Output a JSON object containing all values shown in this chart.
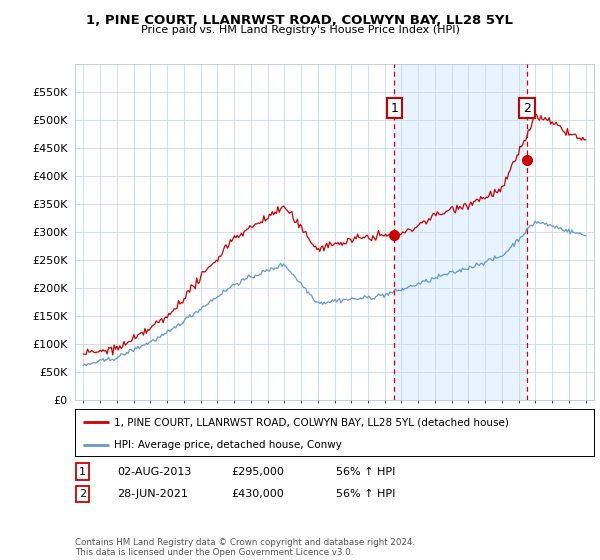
{
  "title": "1, PINE COURT, LLANRWST ROAD, COLWYN BAY, LL28 5YL",
  "subtitle": "Price paid vs. HM Land Registry's House Price Index (HPI)",
  "ylim": [
    0,
    600000
  ],
  "yticks": [
    0,
    50000,
    100000,
    150000,
    200000,
    250000,
    300000,
    350000,
    400000,
    450000,
    500000,
    550000
  ],
  "hpi_color": "#6699cc",
  "price_color": "#cc0000",
  "sale1_date_x": 2013.58,
  "sale1_price": 295000,
  "sale2_date_x": 2021.49,
  "sale2_price": 430000,
  "vline_color": "#cc0000",
  "fill_color": "#ddeeff",
  "legend_label_price": "1, PINE COURT, LLANRWST ROAD, COLWYN BAY, LL28 5YL (detached house)",
  "legend_label_hpi": "HPI: Average price, detached house, Conwy",
  "table_row1": [
    "1",
    "02-AUG-2013",
    "£295,000",
    "56% ↑ HPI"
  ],
  "table_row2": [
    "2",
    "28-JUN-2021",
    "£430,000",
    "56% ↑ HPI"
  ],
  "footer": "Contains HM Land Registry data © Crown copyright and database right 2024.\nThis data is licensed under the Open Government Licence v3.0.",
  "bg_color": "#ffffff",
  "plot_bg_color": "#ffffff",
  "grid_color": "#ccddee",
  "xmin": 1994.5,
  "xmax": 2025.5
}
